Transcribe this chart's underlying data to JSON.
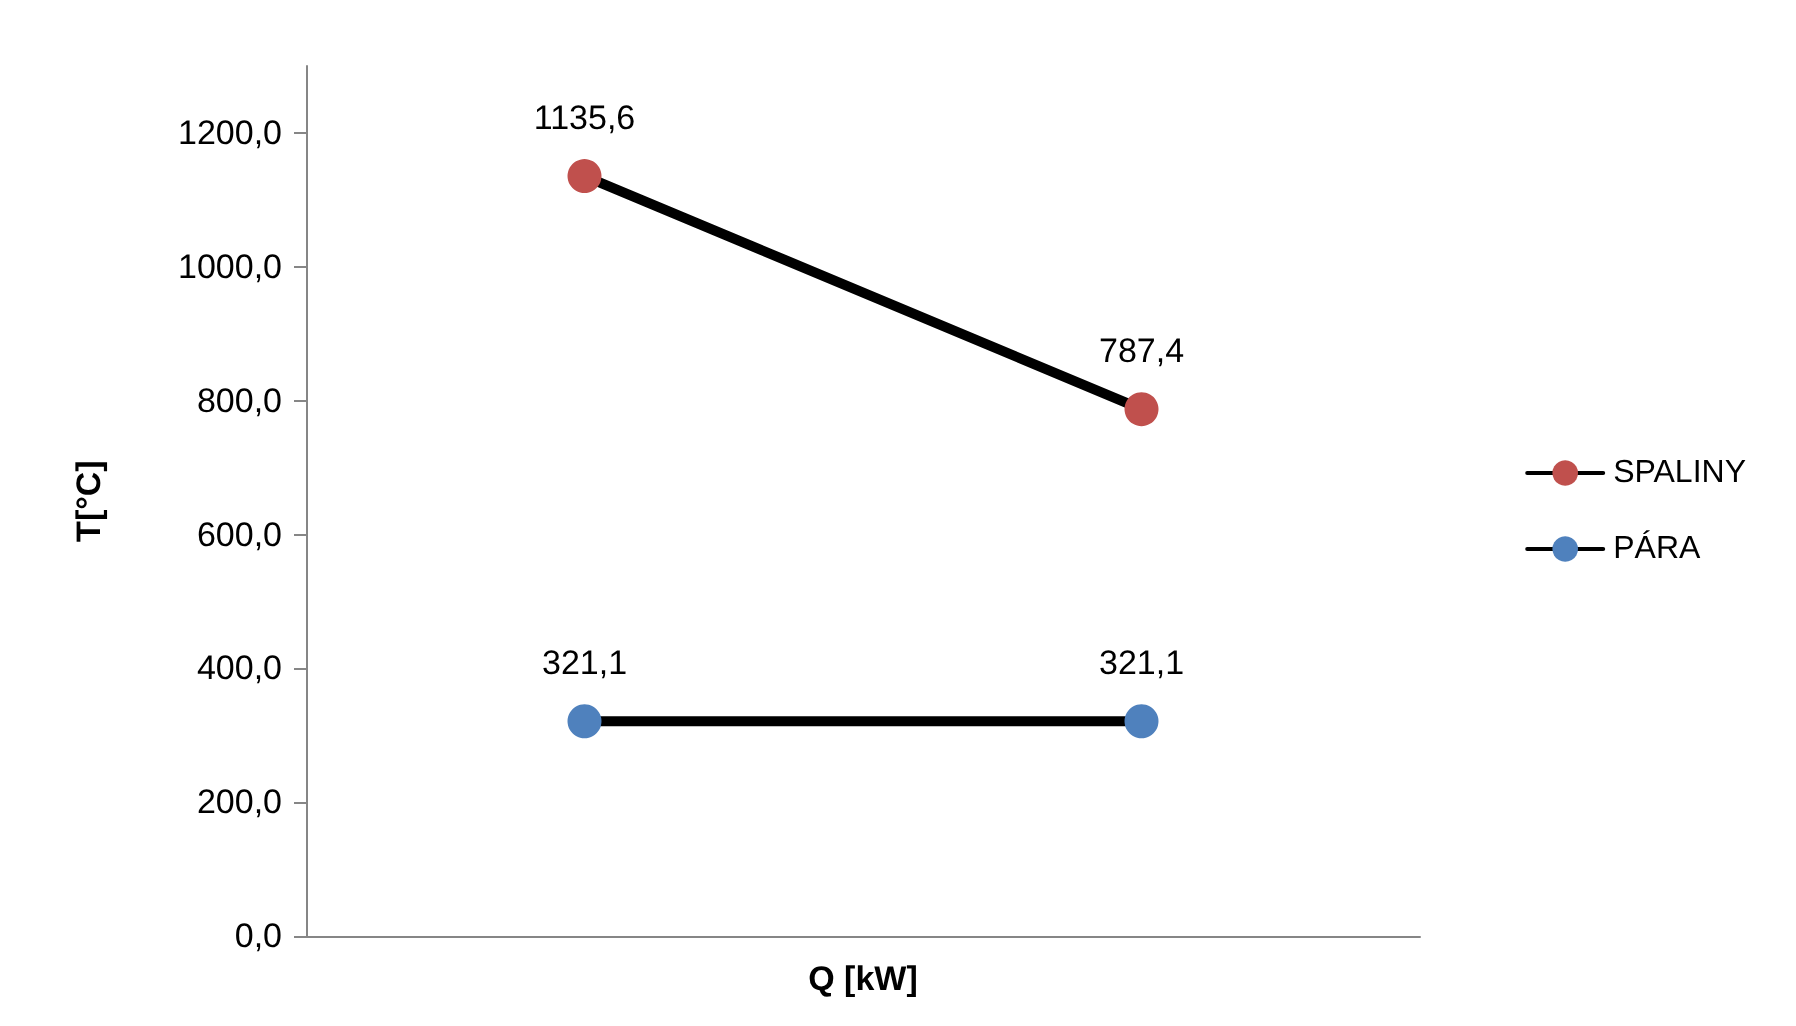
{
  "chart_data": {
    "type": "line",
    "xlabel": "Q [kW]",
    "ylabel": "T[°C]",
    "categories": [
      null,
      null
    ],
    "series": [
      {
        "name": "SPALINY",
        "color": "#c0504d",
        "values": [
          1135.6,
          787.4
        ],
        "value_labels": [
          "1135,6",
          "787,4"
        ]
      },
      {
        "name": "PÁRA",
        "color": "#4f81bd",
        "values": [
          321.1,
          321.1
        ],
        "value_labels": [
          "321,1",
          "321,1"
        ]
      }
    ],
    "ylim": [
      0,
      1300
    ],
    "yticks": [
      {
        "value": 0,
        "label": "0,0"
      },
      {
        "value": 200,
        "label": "200,0"
      },
      {
        "value": 400,
        "label": "400,0"
      },
      {
        "value": 600,
        "label": "600,0"
      },
      {
        "value": 800,
        "label": "800,0"
      },
      {
        "value": 1000,
        "label": "1000,0"
      },
      {
        "value": 1200,
        "label": "1200,0"
      }
    ],
    "grid": false,
    "legend": "right",
    "marker": "circle",
    "line_style": "solid"
  }
}
